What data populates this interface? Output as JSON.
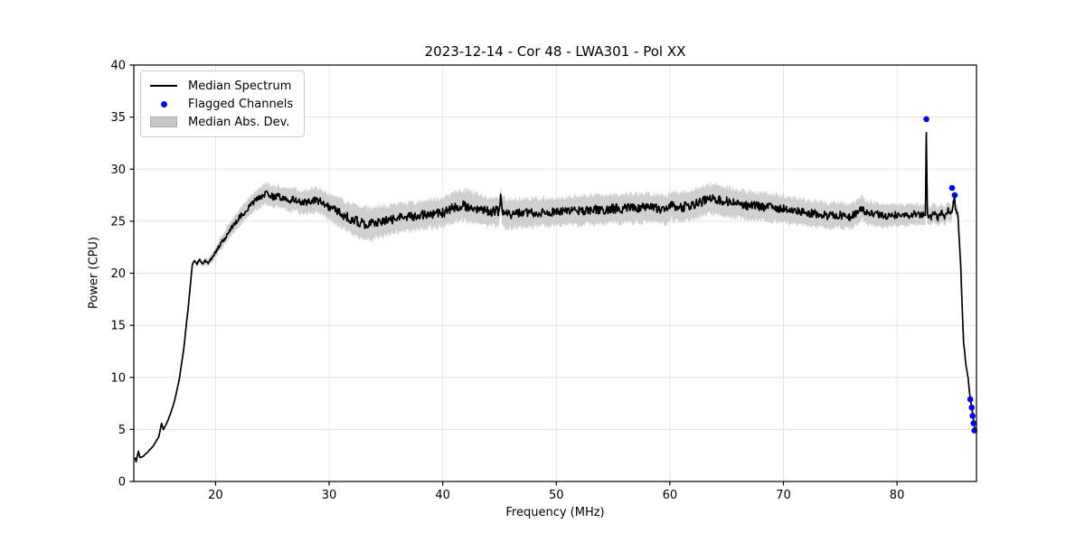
{
  "title": "2023-12-14 - Cor 48 - LWA301 - Pol XX",
  "legend": {
    "items": [
      {
        "label": "Median Spectrum",
        "type": "line"
      },
      {
        "label": "Flagged Channels",
        "type": "dot"
      },
      {
        "label": "Median Abs. Dev.",
        "type": "band"
      }
    ],
    "position": "upper left"
  },
  "chart_data": {
    "type": "line",
    "title": "2023-12-14 - Cor 48 - LWA301 - Pol XX",
    "xlabel": "Frequency (MHz)",
    "ylabel": "Power (CPU)",
    "xlim": [
      12.8,
      87.0
    ],
    "ylim": [
      0,
      40
    ],
    "xticks": [
      20,
      30,
      40,
      50,
      60,
      70,
      80
    ],
    "yticks": [
      0,
      5,
      10,
      15,
      20,
      25,
      30,
      35,
      40
    ],
    "grid": true,
    "colors": {
      "median": "#000000",
      "flagged": "#0000ff",
      "band": "#c8c8c8",
      "grid": "#e4e4e4",
      "spine": "#000000"
    },
    "series": [
      {
        "name": "Median Spectrum",
        "type": "line",
        "keypoints": [
          [
            12.9,
            2.3
          ],
          [
            13.0,
            1.9
          ],
          [
            13.2,
            2.9
          ],
          [
            13.35,
            2.3
          ],
          [
            13.6,
            2.4
          ],
          [
            14.0,
            2.8
          ],
          [
            14.5,
            3.4
          ],
          [
            15.0,
            4.3
          ],
          [
            15.25,
            5.6
          ],
          [
            15.4,
            5.0
          ],
          [
            15.7,
            5.6
          ],
          [
            16.0,
            6.4
          ],
          [
            16.4,
            7.8
          ],
          [
            16.8,
            9.8
          ],
          [
            17.2,
            12.8
          ],
          [
            17.6,
            16.8
          ],
          [
            17.95,
            20.8
          ],
          [
            18.1,
            21.2
          ],
          [
            18.35,
            20.9
          ],
          [
            18.6,
            21.3
          ],
          [
            18.85,
            20.9
          ],
          [
            19.1,
            21.2
          ],
          [
            19.35,
            21.0
          ],
          [
            19.6,
            21.4
          ],
          [
            19.9,
            21.8
          ],
          [
            20.3,
            22.6
          ],
          [
            20.8,
            23.4
          ],
          [
            21.3,
            24.2
          ],
          [
            21.8,
            24.9
          ],
          [
            22.3,
            25.6
          ],
          [
            22.8,
            26.2
          ],
          [
            23.3,
            26.8
          ],
          [
            23.8,
            27.2
          ],
          [
            24.3,
            27.6
          ],
          [
            24.7,
            27.5
          ],
          [
            25.1,
            27.3
          ],
          [
            25.5,
            27.4
          ],
          [
            26.0,
            27.2
          ],
          [
            26.5,
            27.0
          ],
          [
            27.0,
            27.1
          ],
          [
            27.5,
            26.8
          ],
          [
            28.0,
            26.8
          ],
          [
            28.6,
            27.0
          ],
          [
            29.1,
            27.0
          ],
          [
            29.6,
            26.7
          ],
          [
            30.1,
            26.3
          ],
          [
            30.6,
            26.1
          ],
          [
            31.1,
            25.7
          ],
          [
            31.6,
            25.4
          ],
          [
            32.1,
            25.1
          ],
          [
            32.6,
            24.9
          ],
          [
            33.1,
            24.8
          ],
          [
            33.6,
            24.7
          ],
          [
            34.1,
            24.9
          ],
          [
            34.6,
            25.0
          ],
          [
            35.1,
            25.1
          ],
          [
            36.0,
            25.3
          ],
          [
            37.0,
            25.4
          ],
          [
            38.0,
            25.6
          ],
          [
            39.0,
            25.7
          ],
          [
            40.0,
            25.8
          ],
          [
            40.6,
            26.1
          ],
          [
            41.2,
            26.4
          ],
          [
            41.8,
            26.5
          ],
          [
            42.4,
            26.4
          ],
          [
            43.0,
            26.2
          ],
          [
            43.6,
            26.0
          ],
          [
            44.2,
            25.9
          ],
          [
            44.7,
            26.0
          ],
          [
            44.95,
            25.9
          ],
          [
            45.1,
            27.3
          ],
          [
            45.3,
            25.8
          ],
          [
            45.7,
            25.7
          ],
          [
            46.2,
            25.7
          ],
          [
            47.0,
            25.8
          ],
          [
            48.0,
            25.8
          ],
          [
            49.0,
            25.9
          ],
          [
            50.0,
            25.9
          ],
          [
            51.0,
            26.0
          ],
          [
            52.0,
            26.0
          ],
          [
            53.0,
            26.1
          ],
          [
            54.0,
            26.1
          ],
          [
            55.0,
            26.2
          ],
          [
            56.0,
            26.2
          ],
          [
            57.0,
            26.3
          ],
          [
            58.0,
            26.3
          ],
          [
            59.0,
            26.2
          ],
          [
            59.7,
            26.1
          ],
          [
            60.2,
            26.5
          ],
          [
            60.7,
            26.3
          ],
          [
            61.3,
            26.4
          ],
          [
            62.0,
            26.6
          ],
          [
            62.7,
            26.8
          ],
          [
            63.4,
            27.1
          ],
          [
            63.9,
            27.1
          ],
          [
            64.4,
            27.0
          ],
          [
            65.0,
            26.9
          ],
          [
            65.6,
            26.7
          ],
          [
            66.2,
            26.6
          ],
          [
            67.0,
            26.5
          ],
          [
            68.0,
            26.4
          ],
          [
            69.0,
            26.3
          ],
          [
            70.0,
            26.2
          ],
          [
            71.0,
            26.0
          ],
          [
            72.0,
            25.8
          ],
          [
            73.0,
            25.7
          ],
          [
            74.0,
            25.5
          ],
          [
            75.0,
            25.6
          ],
          [
            75.8,
            25.4
          ],
          [
            76.5,
            25.8
          ],
          [
            76.9,
            26.3
          ],
          [
            77.3,
            25.8
          ],
          [
            78.0,
            25.7
          ],
          [
            79.0,
            25.5
          ],
          [
            80.0,
            25.6
          ],
          [
            80.8,
            25.5
          ],
          [
            81.5,
            25.7
          ],
          [
            82.1,
            25.6
          ],
          [
            82.5,
            25.7
          ],
          [
            82.58,
            33.5
          ],
          [
            82.68,
            25.6
          ],
          [
            83.0,
            25.4
          ],
          [
            83.3,
            25.9
          ],
          [
            83.6,
            25.3
          ],
          [
            83.9,
            25.9
          ],
          [
            84.2,
            25.4
          ],
          [
            84.5,
            26.1
          ],
          [
            84.75,
            25.6
          ],
          [
            84.95,
            26.7
          ],
          [
            85.05,
            27.3
          ],
          [
            85.15,
            26.2
          ],
          [
            85.35,
            25.8
          ],
          [
            85.6,
            21.0
          ],
          [
            85.85,
            13.5
          ],
          [
            86.1,
            11.0
          ],
          [
            86.25,
            10.0
          ],
          [
            86.45,
            7.9
          ],
          [
            86.6,
            7.0
          ],
          [
            86.75,
            5.8
          ],
          [
            86.88,
            4.9
          ]
        ]
      },
      {
        "name": "Median Abs. Dev.",
        "type": "band",
        "halfwidth_keypoints": [
          [
            12.9,
            0.05
          ],
          [
            15.0,
            0.07
          ],
          [
            16.5,
            0.1
          ],
          [
            17.8,
            0.15
          ],
          [
            18.3,
            0.25
          ],
          [
            19.0,
            0.3
          ],
          [
            20.0,
            0.5
          ],
          [
            21.0,
            0.7
          ],
          [
            22.0,
            0.8
          ],
          [
            23.0,
            0.9
          ],
          [
            24.3,
            1.0
          ],
          [
            25.5,
            1.0
          ],
          [
            26.5,
            1.05
          ],
          [
            27.5,
            1.05
          ],
          [
            28.6,
            1.15
          ],
          [
            30.0,
            1.2
          ],
          [
            31.5,
            1.4
          ],
          [
            32.5,
            1.5
          ],
          [
            33.5,
            1.5
          ],
          [
            35.0,
            1.45
          ],
          [
            37.0,
            1.35
          ],
          [
            39.0,
            1.35
          ],
          [
            41.0,
            1.45
          ],
          [
            42.5,
            1.5
          ],
          [
            44.0,
            1.4
          ],
          [
            44.9,
            1.4
          ],
          [
            45.1,
            1.0
          ],
          [
            45.3,
            1.4
          ],
          [
            46.0,
            1.4
          ],
          [
            48.0,
            1.35
          ],
          [
            50.0,
            1.3
          ],
          [
            52.0,
            1.35
          ],
          [
            54.0,
            1.4
          ],
          [
            56.0,
            1.4
          ],
          [
            58.0,
            1.4
          ],
          [
            60.0,
            1.35
          ],
          [
            62.0,
            1.4
          ],
          [
            63.5,
            1.4
          ],
          [
            65.0,
            1.4
          ],
          [
            67.0,
            1.35
          ],
          [
            69.0,
            1.3
          ],
          [
            71.0,
            1.25
          ],
          [
            73.0,
            1.2
          ],
          [
            75.0,
            1.2
          ],
          [
            77.0,
            1.15
          ],
          [
            79.0,
            1.1
          ],
          [
            81.0,
            1.0
          ],
          [
            82.5,
            0.95
          ],
          [
            82.58,
            0.3
          ],
          [
            82.68,
            0.95
          ],
          [
            83.5,
            0.9
          ],
          [
            84.5,
            0.85
          ],
          [
            85.2,
            0.7
          ],
          [
            85.5,
            0.4
          ],
          [
            86.0,
            0.25
          ],
          [
            86.5,
            0.15
          ],
          [
            86.9,
            0.1
          ]
        ]
      },
      {
        "name": "Flagged Channels",
        "type": "scatter",
        "points": [
          [
            82.58,
            34.8
          ],
          [
            84.85,
            28.2
          ],
          [
            85.08,
            27.5
          ],
          [
            86.45,
            7.9
          ],
          [
            86.58,
            7.1
          ],
          [
            86.66,
            6.3
          ],
          [
            86.74,
            5.6
          ],
          [
            86.82,
            4.9
          ]
        ]
      }
    ],
    "noise": {
      "sample_step_mhz": 0.06,
      "line_jitter_fraction": 0.16,
      "band_jitter_fraction": 0.22
    }
  }
}
